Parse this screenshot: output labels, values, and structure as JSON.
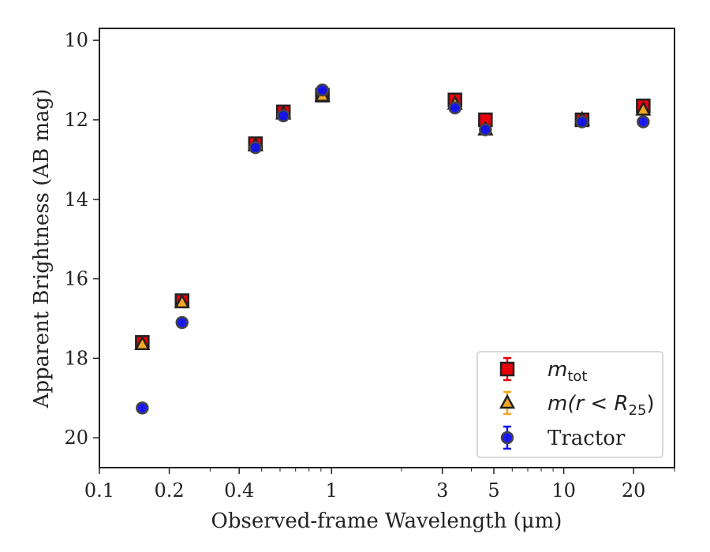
{
  "chart_data": {
    "type": "scatter",
    "xscale": "log",
    "yaxis_inverted": true,
    "xlim": [
      0.1,
      30
    ],
    "ylim": [
      20.75,
      9.7
    ],
    "xlabel": "Observed-frame Wavelength (μm)",
    "ylabel": "Apparent Brightness (AB mag)",
    "xticks": [
      {
        "value": 0.1,
        "label": "0.1"
      },
      {
        "value": 0.2,
        "label": "0.2"
      },
      {
        "value": 0.4,
        "label": "0.4"
      },
      {
        "value": 1,
        "label": "1"
      },
      {
        "value": 3,
        "label": "3"
      },
      {
        "value": 5,
        "label": "5"
      },
      {
        "value": 10,
        "label": "10"
      },
      {
        "value": 20,
        "label": "20"
      }
    ],
    "yticks": [
      {
        "value": 10,
        "label": "10"
      },
      {
        "value": 12,
        "label": "12"
      },
      {
        "value": 14,
        "label": "14"
      },
      {
        "value": 16,
        "label": "16"
      },
      {
        "value": 18,
        "label": "18"
      },
      {
        "value": 20,
        "label": "20"
      }
    ],
    "grid": false,
    "legend_position": "bottom-right",
    "series": [
      {
        "name": "m_tot",
        "legend_base": "m",
        "legend_sub": "tot",
        "marker": "square",
        "color": "#e8000b",
        "edge_color": "#222222",
        "points": [
          {
            "x": 0.153,
            "y": 17.6
          },
          {
            "x": 0.227,
            "y": 16.55
          },
          {
            "x": 0.47,
            "y": 12.6
          },
          {
            "x": 0.62,
            "y": 11.8
          },
          {
            "x": 0.913,
            "y": 11.38
          },
          {
            "x": 3.4,
            "y": 11.5
          },
          {
            "x": 4.6,
            "y": 12.0
          },
          {
            "x": 12.0,
            "y": 12.0
          },
          {
            "x": 22.0,
            "y": 11.65
          }
        ]
      },
      {
        "name": "m(r < R_25)",
        "legend_base": "m(r < R",
        "legend_sub": "25",
        "legend_tail": ")",
        "marker": "triangle",
        "color": "#f5a623",
        "edge_color": "#222222",
        "points": [
          {
            "x": 0.153,
            "y": 17.65
          },
          {
            "x": 0.227,
            "y": 16.6
          },
          {
            "x": 0.47,
            "y": 12.65
          },
          {
            "x": 0.62,
            "y": 11.85
          },
          {
            "x": 0.913,
            "y": 11.4
          },
          {
            "x": 3.4,
            "y": 11.6
          },
          {
            "x": 4.6,
            "y": 12.25
          },
          {
            "x": 12.0,
            "y": 12.0
          },
          {
            "x": 22.0,
            "y": 11.75
          }
        ]
      },
      {
        "name": "Tractor",
        "marker": "circle",
        "color": "#1010ee",
        "edge_color": "#444444",
        "points": [
          {
            "x": 0.153,
            "y": 19.25
          },
          {
            "x": 0.227,
            "y": 17.1
          },
          {
            "x": 0.47,
            "y": 12.7
          },
          {
            "x": 0.62,
            "y": 11.9
          },
          {
            "x": 0.913,
            "y": 11.25
          },
          {
            "x": 3.4,
            "y": 11.7
          },
          {
            "x": 4.6,
            "y": 12.25
          },
          {
            "x": 12.0,
            "y": 12.05
          },
          {
            "x": 22.0,
            "y": 12.05
          }
        ]
      }
    ]
  }
}
